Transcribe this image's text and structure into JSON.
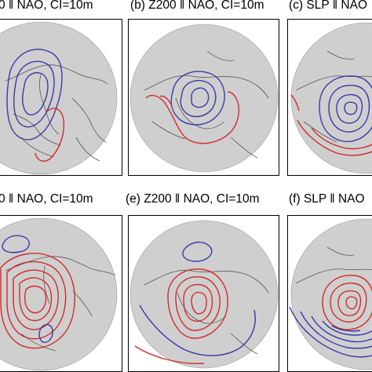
{
  "figure": {
    "panels": [
      {
        "id": "a",
        "title": "0 ‖ NAO, CI=10m"
      },
      {
        "id": "b",
        "title": "(b) Z200 ‖ NAO, CI=10m"
      },
      {
        "id": "c",
        "title": "(c) SLP ‖ NAO"
      },
      {
        "id": "d",
        "title": "0 ‖ NAO, CI=10m"
      },
      {
        "id": "e",
        "title": "(e) Z200 ‖ NAO, CI=10m"
      },
      {
        "id": "f",
        "title": "(f) SLP ‖ NAO"
      }
    ],
    "colors": {
      "land": "#cfcfcf",
      "coast": "#555555",
      "positive_contour": "#d42a2a",
      "negative_contour": "#3a3aa8"
    }
  }
}
